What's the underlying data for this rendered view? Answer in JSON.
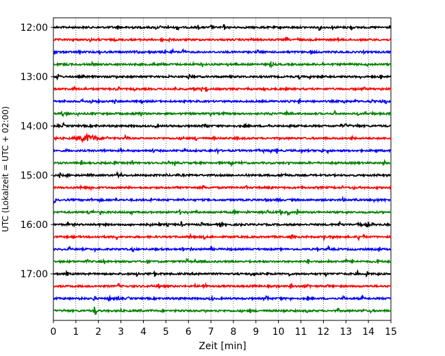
{
  "chart_data": {
    "type": "line",
    "title": "",
    "xlabel": "Zeit  [min]",
    "ylabel": "UTC (Lokalzeit = UTC + 02:00)",
    "xlim": [
      0,
      15
    ],
    "x_ticks": [
      0,
      1,
      2,
      3,
      4,
      5,
      6,
      7,
      8,
      9,
      10,
      11,
      12,
      13,
      14,
      15
    ],
    "x_tick_labels": [
      "0",
      "1",
      "2",
      "3",
      "4",
      "5",
      "6",
      "7",
      "8",
      "9",
      "10",
      "11",
      "12",
      "13",
      "14",
      "15"
    ],
    "y_tick_labels": [
      "12:00",
      "13:00",
      "14:00",
      "15:00",
      "16:00",
      "17:00"
    ],
    "vertical_grid": true,
    "trace_minutes": 15,
    "trace_colors": [
      "#000000",
      "#ff0000",
      "#0000ff",
      "#008000"
    ],
    "traces": [
      {
        "start": "12:00"
      },
      {
        "start": "12:15"
      },
      {
        "start": "12:30"
      },
      {
        "start": "12:45"
      },
      {
        "start": "13:00"
      },
      {
        "start": "13:15"
      },
      {
        "start": "13:30"
      },
      {
        "start": "13:45"
      },
      {
        "start": "14:00"
      },
      {
        "start": "14:15",
        "event": {
          "minute": 1.5,
          "width": 0.9,
          "amp": 6
        }
      },
      {
        "start": "14:30"
      },
      {
        "start": "14:45"
      },
      {
        "start": "15:00"
      },
      {
        "start": "15:15"
      },
      {
        "start": "15:30"
      },
      {
        "start": "15:45"
      },
      {
        "start": "16:00"
      },
      {
        "start": "16:15"
      },
      {
        "start": "16:30"
      },
      {
        "start": "16:45"
      },
      {
        "start": "17:00"
      },
      {
        "start": "17:15"
      },
      {
        "start": "17:30"
      },
      {
        "start": "17:45",
        "event": {
          "minute": 1.85,
          "width": 0.1,
          "amp": 9
        }
      }
    ]
  }
}
